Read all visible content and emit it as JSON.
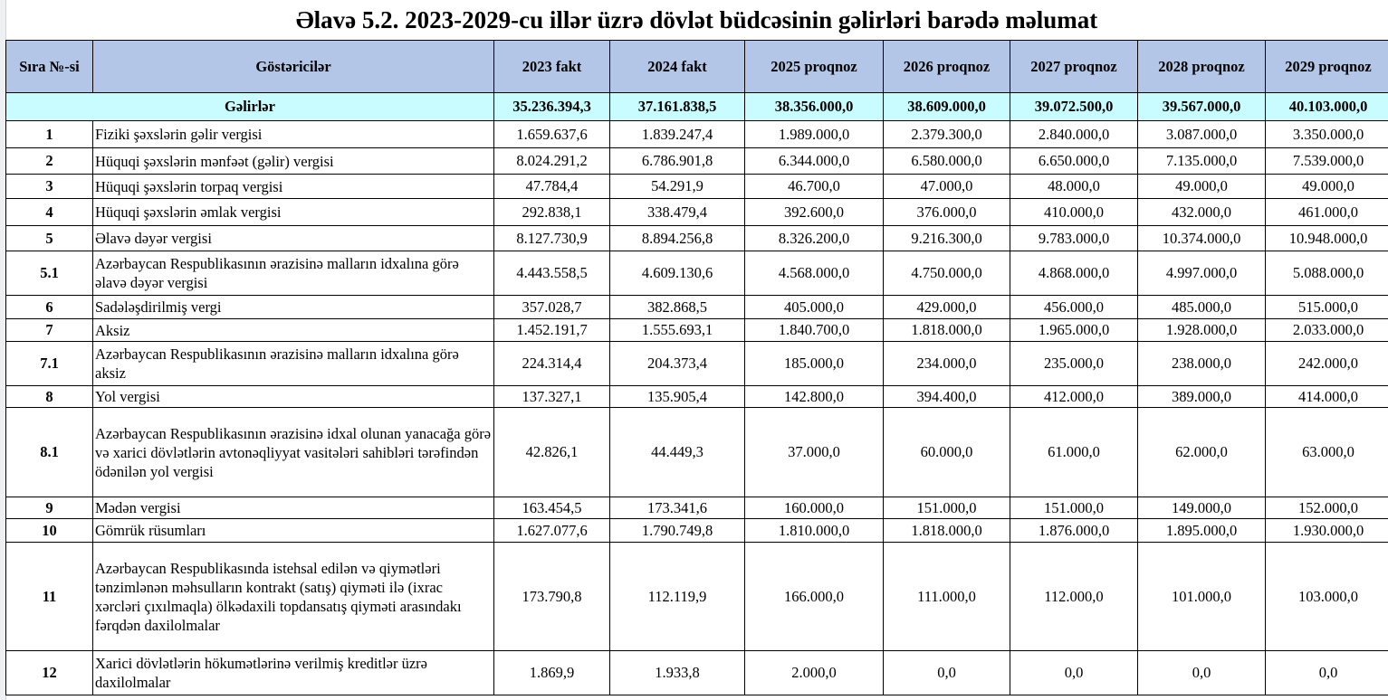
{
  "title": "Əlavə 5.2. 2023-2029-cu illər üzrə dövlət büdcəsinin gəlirləri barədə məlumat",
  "columns": [
    "Sıra №-si",
    "Göstəricilər",
    "2023 fakt",
    "2024 fakt",
    "2025 proqnoz",
    "2026 proqnoz",
    "2027 proqnoz",
    "2028 proqnoz",
    "2029 proqnoz"
  ],
  "total": {
    "label": "Gəlirlər",
    "values": [
      "35.236.394,3",
      "37.161.838,5",
      "38.356.000,0",
      "38.609.000,0",
      "39.072.500,0",
      "39.567.000,0",
      "40.103.000,0"
    ]
  },
  "rows": [
    {
      "no": "1",
      "name": "Fiziki şəxslərin gəlir vergisi",
      "values": [
        "1.659.637,6",
        "1.839.247,4",
        "1.989.000,0",
        "2.379.300,0",
        "2.840.000,0",
        "3.087.000,0",
        "3.350.000,0"
      ]
    },
    {
      "no": "2",
      "name": "Hüquqi şəxslərin mənfəət (gəlir) vergisi",
      "values": [
        "8.024.291,2",
        "6.786.901,8",
        "6.344.000,0",
        "6.580.000,0",
        "6.650.000,0",
        "7.135.000,0",
        "7.539.000,0"
      ]
    },
    {
      "no": "3",
      "name": "Hüquqi şəxslərin torpaq vergisi",
      "values": [
        "47.784,4",
        "54.291,9",
        "46.700,0",
        "47.000,0",
        "48.000,0",
        "49.000,0",
        "49.000,0"
      ]
    },
    {
      "no": "4",
      "name": "Hüquqi şəxslərin əmlak vergisi",
      "values": [
        "292.838,1",
        "338.479,4",
        "392.600,0",
        "376.000,0",
        "410.000,0",
        "432.000,0",
        "461.000,0"
      ]
    },
    {
      "no": "5",
      "name": "Əlavə dəyər vergisi",
      "values": [
        "8.127.730,9",
        "8.894.256,8",
        "8.326.200,0",
        "9.216.300,0",
        "9.783.000,0",
        "10.374.000,0",
        "10.948.000,0"
      ]
    },
    {
      "no": "5.1",
      "name": "Azərbaycan Respublikasının ərazisinə malların idxalına görə əlavə dəyər vergisi",
      "values": [
        "4.443.558,5",
        "4.609.130,6",
        "4.568.000,0",
        "4.750.000,0",
        "4.868.000,0",
        "4.997.000,0",
        "5.088.000,0"
      ]
    },
    {
      "no": "6",
      "name": "Sadələşdirilmiş vergi",
      "values": [
        "357.028,7",
        "382.868,5",
        "405.000,0",
        "429.000,0",
        "456.000,0",
        "485.000,0",
        "515.000,0"
      ]
    },
    {
      "no": "7",
      "name": "Aksiz",
      "values": [
        "1.452.191,7",
        "1.555.693,1",
        "1.840.700,0",
        "1.818.000,0",
        "1.965.000,0",
        "1.928.000,0",
        "2.033.000,0"
      ]
    },
    {
      "no": "7.1",
      "name": "Azərbaycan Respublikasının ərazisinə malların idxalına görə aksiz",
      "values": [
        "224.314,4",
        "204.373,4",
        "185.000,0",
        "234.000,0",
        "235.000,0",
        "238.000,0",
        "242.000,0"
      ]
    },
    {
      "no": "8",
      "name": "Yol vergisi",
      "values": [
        "137.327,1",
        "135.905,4",
        "142.800,0",
        "394.400,0",
        "412.000,0",
        "389.000,0",
        "414.000,0"
      ]
    },
    {
      "no": "8.1",
      "name": "Azərbaycan Respublikasının ərazisinə idxal olunan yanacağa görə və xarici dövlətlərin avtonəqliyyat vasitələri sahibləri tərəfindən ödənilən yol vergisi",
      "values": [
        "42.826,1",
        "44.449,3",
        "37.000,0",
        "60.000,0",
        "61.000,0",
        "62.000,0",
        "63.000,0"
      ]
    },
    {
      "no": "9",
      "name": "Mədən vergisi",
      "values": [
        "163.454,5",
        "173.341,6",
        "160.000,0",
        "151.000,0",
        "151.000,0",
        "149.000,0",
        "152.000,0"
      ]
    },
    {
      "no": "10",
      "name": "Gömrük rüsumları",
      "values": [
        "1.627.077,6",
        "1.790.749,8",
        "1.810.000,0",
        "1.818.000,0",
        "1.876.000,0",
        "1.895.000,0",
        "1.930.000,0"
      ]
    },
    {
      "no": "11",
      "name": "Azərbaycan Respublikasında istehsal edilən və qiymətləri tənzimlənən məhsulların kontrakt (satış) qiyməti ilə (ixrac xərcləri çıxılmaqla) ölkədaxili topdansatış qiyməti arasındakı fərqdən daxilolmalar",
      "values": [
        "173.790,8",
        "112.119,9",
        "166.000,0",
        "111.000,0",
        "112.000,0",
        "101.000,0",
        "103.000,0"
      ]
    },
    {
      "no": "12",
      "name": "Xarici dövlətlərin hökumətlərinə verilmiş kreditlər üzrə daxilolmalar",
      "values": [
        "1.869,9",
        "1.933,8",
        "2.000,0",
        "0,0",
        "0,0",
        "0,0",
        "0,0"
      ]
    }
  ]
}
